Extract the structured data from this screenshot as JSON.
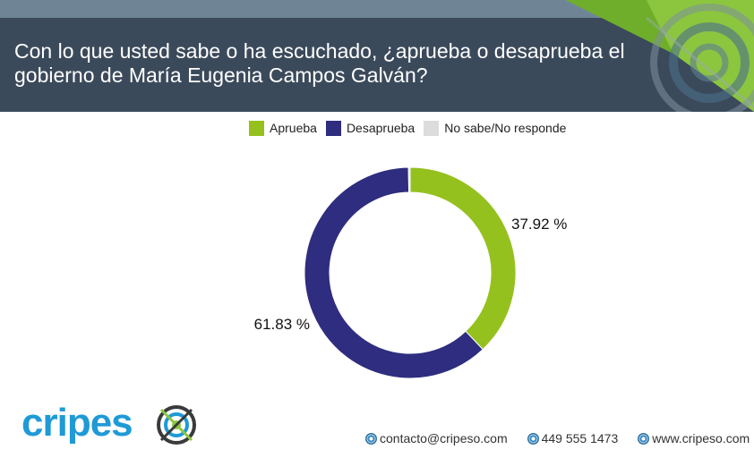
{
  "title": "Con lo que usted sabe o ha escuchado, ¿aprueba o desaprueba el gobierno de María Eugenia Campos Galván?",
  "colors": {
    "aprueba": "#95c11f",
    "desaprueba": "#2e2d7f",
    "no_sabe": "#dcdcdc",
    "header": "#3b4a5b"
  },
  "chart_data": {
    "type": "pie",
    "style": "donut",
    "labels": [
      "Aprueba",
      "Desaprueba",
      "No sabe/No responde"
    ],
    "values": [
      37.92,
      61.83,
      0.25
    ],
    "data_labels": [
      "37.92 %",
      "61.83 %",
      ""
    ],
    "legend": "top-center"
  },
  "logo": {
    "text_main": "cripes",
    "text_accent": "o"
  },
  "contacts": [
    {
      "icon": "cripeso-logo-icon",
      "text": "contacto@cripeso.com"
    },
    {
      "icon": "cripeso-logo-icon",
      "text": "449 555 1473"
    },
    {
      "icon": "cripeso-logo-icon",
      "text": "www.cripeso.com"
    }
  ]
}
